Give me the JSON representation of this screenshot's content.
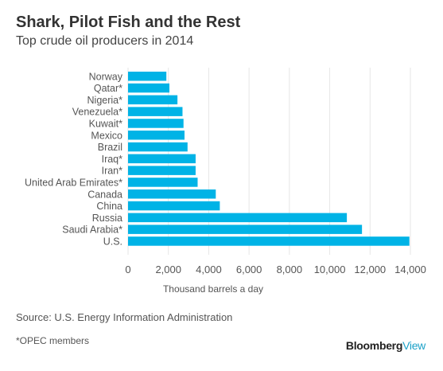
{
  "header": {
    "title": "Shark, Pilot Fish and the Rest",
    "subtitle": "Top crude oil producers in 2014"
  },
  "chart_data": {
    "type": "bar",
    "orientation": "horizontal",
    "categories": [
      "Norway",
      "Qatar*",
      "Nigeria*",
      "Venezuela*",
      "Kuwait*",
      "Mexico",
      "Brazil",
      "Iraq*",
      "Iran*",
      "United Arab Emirates*",
      "Canada",
      "China",
      "Russia",
      "Saudi Arabia*",
      "U.S."
    ],
    "values": [
      1900,
      2050,
      2450,
      2700,
      2750,
      2800,
      2950,
      3350,
      3350,
      3450,
      4350,
      4550,
      10850,
      11600,
      13950
    ],
    "xlabel": "Thousand barrels a day",
    "ylabel": "",
    "xlim": [
      0,
      14000
    ],
    "xticks": [
      0,
      2000,
      4000,
      6000,
      8000,
      10000,
      12000,
      14000
    ],
    "xtick_labels": [
      "0",
      "2,000",
      "4,000",
      "6,000",
      "8,000",
      "10,000",
      "12,000",
      "14,000"
    ],
    "grid": true,
    "bar_color": "#00b3e6",
    "grid_color": "#e6e6e6"
  },
  "footer": {
    "source": "Source: U.S. Energy Information Administration",
    "footnote": "*OPEC members",
    "brand_primary": "Bloomberg",
    "brand_secondary": "View"
  }
}
